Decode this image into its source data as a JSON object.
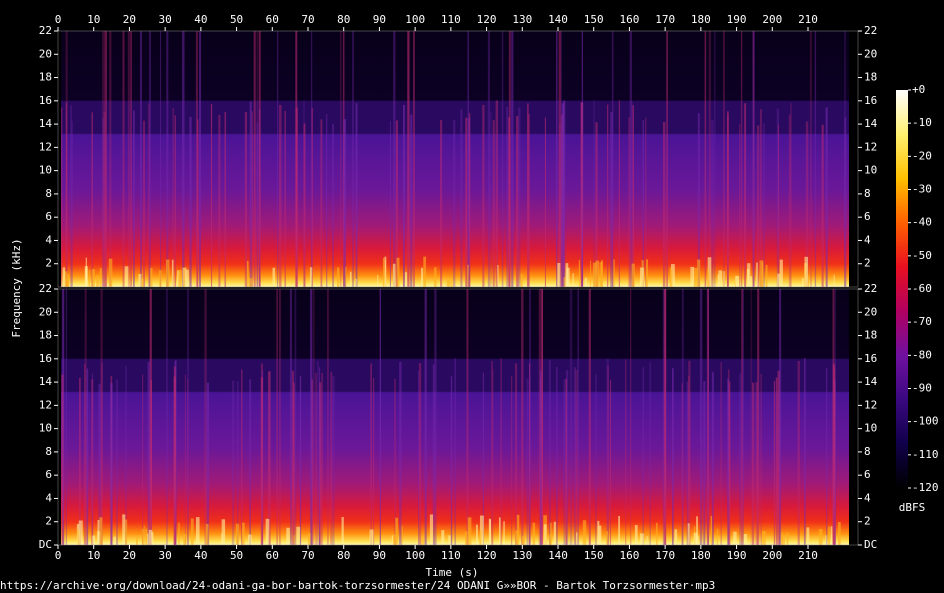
{
  "chart_data": {
    "type": "spectrogram",
    "xlabel": "Time (s)",
    "ylabel": "Frequency (kHz)",
    "xlim": [
      0,
      224
    ],
    "xticks": [
      0,
      10,
      20,
      30,
      40,
      50,
      60,
      70,
      80,
      90,
      100,
      110,
      120,
      130,
      140,
      150,
      160,
      170,
      180,
      190,
      200,
      210
    ],
    "panels": [
      {
        "ylim": [
          0,
          22
        ],
        "yticks": [
          2,
          4,
          6,
          8,
          10,
          12,
          14,
          16,
          18,
          20,
          22
        ]
      },
      {
        "ylim": [
          0,
          22
        ],
        "yticks": [
          {
            "value": 0,
            "label": "DC"
          },
          2,
          4,
          6,
          8,
          10,
          12,
          14,
          16,
          18,
          20,
          22
        ]
      }
    ],
    "colorbar": {
      "label": "dBFS",
      "lim": [
        -120,
        0
      ],
      "ticks": [
        {
          "value": 0,
          "label": "+0"
        },
        -10,
        -20,
        -30,
        -40,
        -50,
        -60,
        -70,
        -80,
        -90,
        -100,
        -110,
        -120
      ],
      "colormap": [
        "#ffffff",
        "#fff070",
        "#ffc000",
        "#ff6000",
        "#e81020",
        "#b00060",
        "#7010a0",
        "#3a0880",
        "#10004a",
        "#000000"
      ]
    },
    "source": "https://archive·org/download/24-odani-ga-bor-bartok-torzsormester/24 ODANI G»»BOR - Bartok Torzsormester·mp3"
  }
}
